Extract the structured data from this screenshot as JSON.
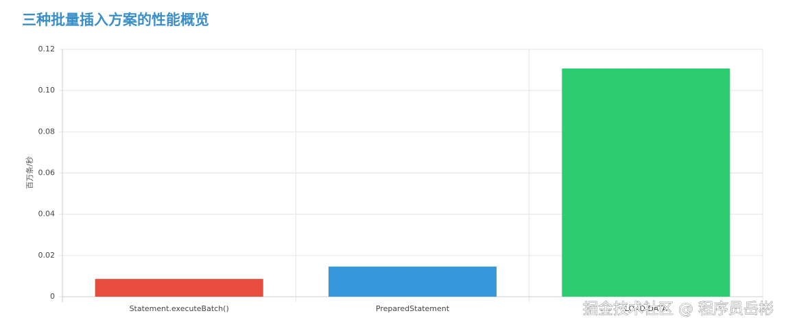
{
  "chart_data": {
    "type": "bar",
    "title": "三种批量插入方案的性能概览",
    "y_label": "百万条/秒",
    "categories": [
      "Statement.executeBatch()",
      "PreparedStatement",
      "LOAD DATA"
    ],
    "values": [
      0.0086,
      0.0146,
      0.1107
    ],
    "colors": [
      "#e74c3c",
      "#3498db",
      "#2ecc71"
    ],
    "ylim": [
      0,
      0.12
    ],
    "yticks": [
      0,
      0.02,
      0.04,
      0.06,
      0.08,
      {
        "value": 0.1,
        "label": "0.10"
      },
      0.12
    ],
    "grid": true,
    "watermark": "掘金技术社区 @ 程序员岳彬"
  }
}
